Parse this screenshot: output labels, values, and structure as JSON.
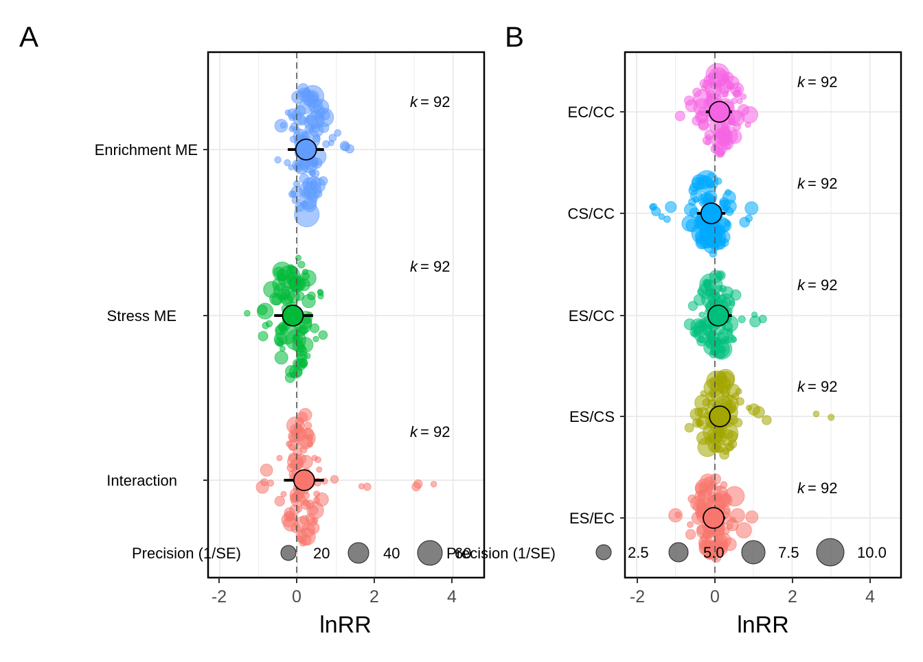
{
  "chart_data": [
    {
      "panel_label": "A",
      "type": "scatter",
      "subtype": "orchard-plot",
      "xlabel": "lnRR",
      "xlim": [
        -2.3,
        4.8
      ],
      "xticks": [
        "-2",
        "0",
        "2",
        "4"
      ],
      "xtick_values": [
        -2,
        0,
        2,
        4
      ],
      "reference_line_x": 0,
      "grid": true,
      "legend": {
        "title": "Precision (1/SE)",
        "position": "bottom",
        "sizes": [
          20,
          40,
          60
        ],
        "size_labels": [
          "20",
          "40",
          "60"
        ]
      },
      "groups": [
        {
          "name": "Enrichment ME",
          "color": "#619CFF",
          "k_label": "= 92",
          "estimate": 0.22,
          "ci": [
            -0.25,
            0.68
          ],
          "spread": [
            -0.55,
            1.5
          ]
        },
        {
          "name": "Stress ME",
          "color": "#00BA38",
          "k_label": "= 92",
          "estimate": -0.12,
          "ci": [
            -0.6,
            0.4
          ],
          "spread": [
            -1.3,
            0.7
          ]
        },
        {
          "name": "Interaction",
          "color": "#F8766D",
          "k_label": "= 92",
          "estimate": 0.17,
          "ci": [
            -0.35,
            0.68
          ],
          "spread": [
            -0.95,
            3.8
          ]
        }
      ]
    },
    {
      "panel_label": "B",
      "type": "scatter",
      "subtype": "orchard-plot",
      "xlabel": "lnRR",
      "xlim": [
        -2.3,
        4.8
      ],
      "xticks": [
        "-2",
        "0",
        "2",
        "4"
      ],
      "xtick_values": [
        -2,
        0,
        2,
        4
      ],
      "reference_line_x": 0,
      "grid": true,
      "legend": {
        "title": "Precision (1/SE)",
        "position": "bottom",
        "sizes": [
          2.5,
          5.0,
          7.5,
          10.0
        ],
        "size_labels": [
          "2.5",
          "5.0",
          "7.5",
          "10.0"
        ]
      },
      "groups": [
        {
          "name": "EC/CC",
          "color": "#F564E3",
          "k_label": "= 92",
          "estimate": 0.13,
          "ci": [
            -0.22,
            0.45
          ],
          "spread": [
            -0.9,
            1.0
          ]
        },
        {
          "name": "CS/CC",
          "color": "#00A9FF",
          "k_label": "= 92",
          "estimate": -0.08,
          "ci": [
            -0.45,
            0.28
          ],
          "spread": [
            -1.7,
            1.0
          ]
        },
        {
          "name": "ES/CC",
          "color": "#00BF7D",
          "k_label": "= 92",
          "estimate": 0.1,
          "ci": [
            -0.18,
            0.45
          ],
          "spread": [
            -0.75,
            1.4
          ]
        },
        {
          "name": "ES/CS",
          "color": "#A3A500",
          "k_label": "= 92",
          "estimate": 0.14,
          "ci": [
            -0.12,
            0.42
          ],
          "spread": [
            -0.75,
            3.1
          ]
        },
        {
          "name": "ES/EC",
          "color": "#F8766D",
          "k_label": "= 92",
          "estimate": -0.02,
          "ci": [
            -0.3,
            0.28
          ],
          "spread": [
            -1.0,
            1.3
          ]
        }
      ]
    }
  ]
}
